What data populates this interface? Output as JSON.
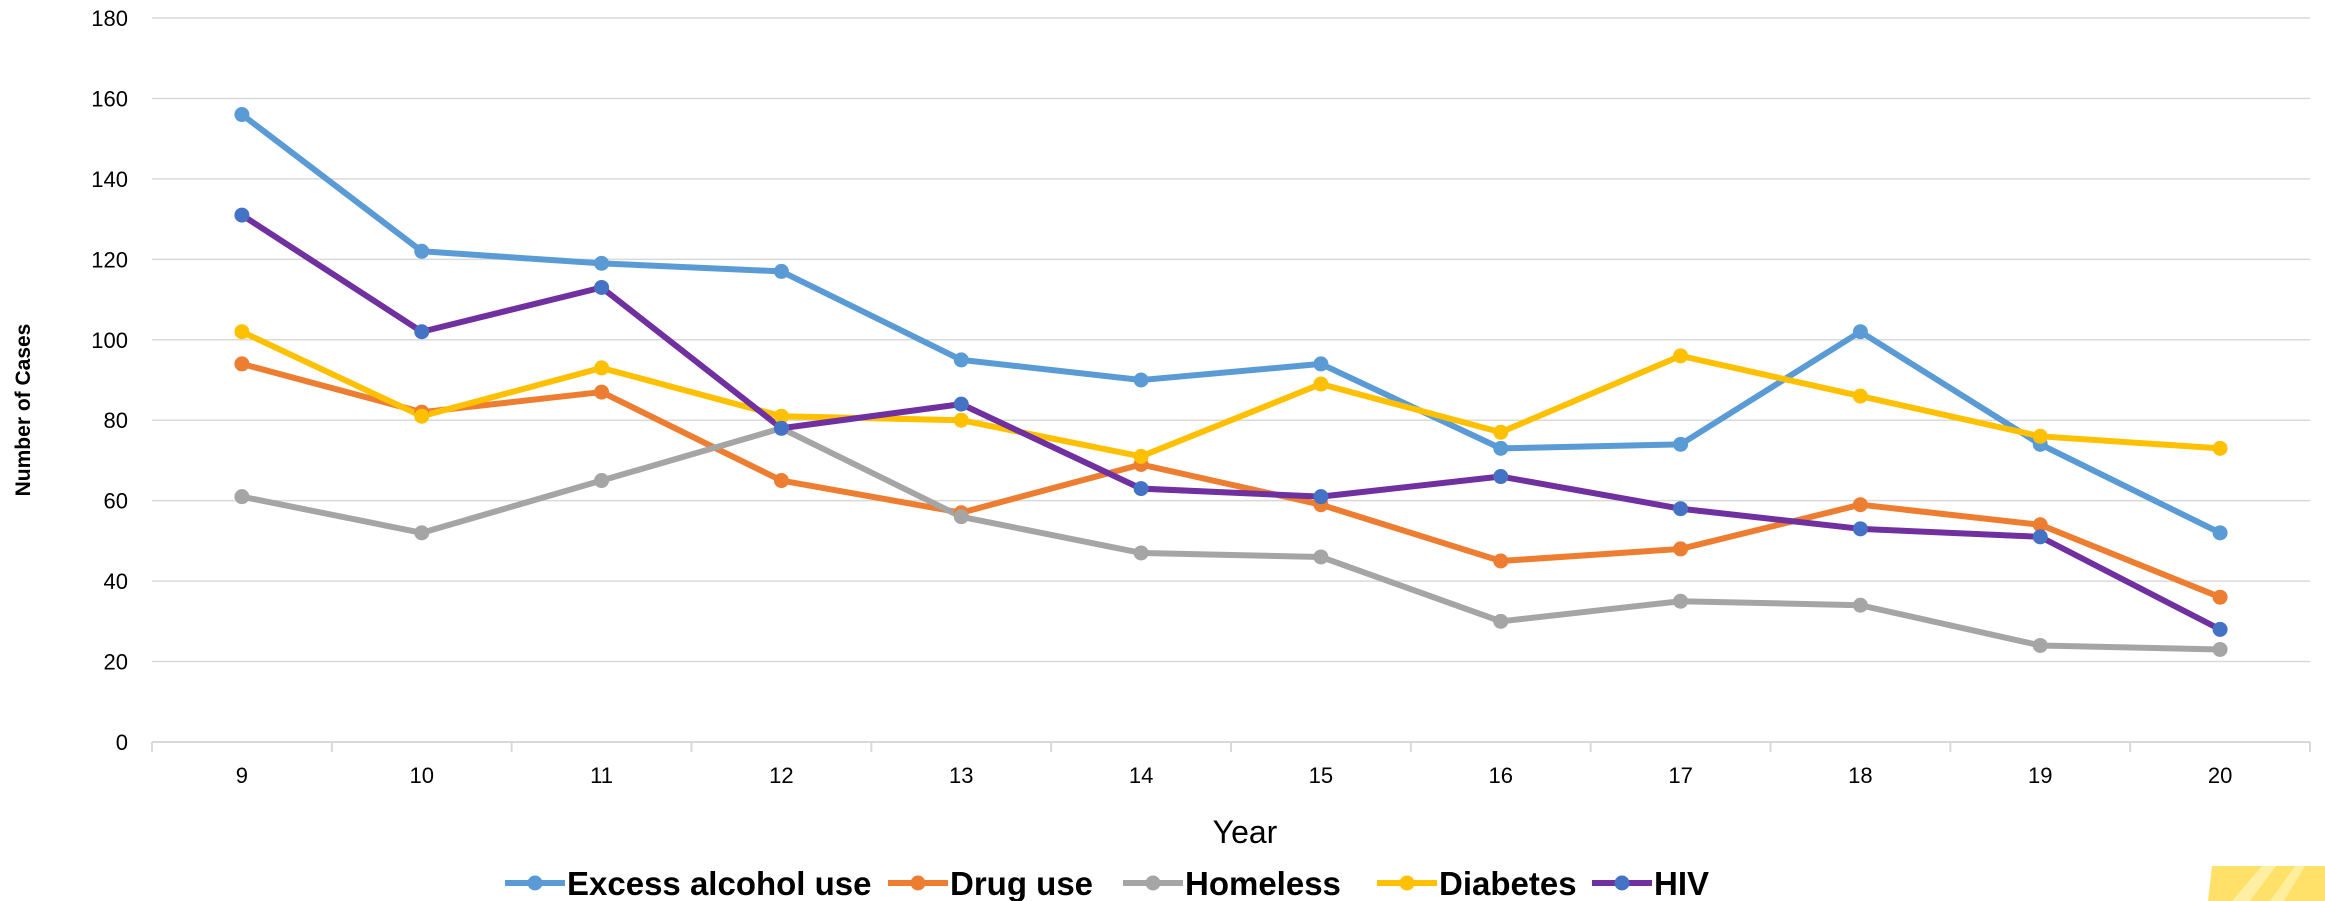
{
  "chart_data": {
    "type": "line",
    "title": "",
    "xlabel": "Year",
    "ylabel": "Number of Cases",
    "x": [
      9,
      10,
      11,
      12,
      13,
      14,
      15,
      16,
      17,
      18,
      19,
      20
    ],
    "ylim": [
      0,
      180
    ],
    "yticks": [
      0,
      20,
      40,
      60,
      80,
      100,
      120,
      140,
      160,
      180
    ],
    "grid": true,
    "legend_position": "bottom",
    "series": [
      {
        "name": "Excess alcohol use",
        "color": "#5B9BD5",
        "values": [
          156,
          122,
          119,
          117,
          95,
          90,
          94,
          73,
          74,
          102,
          74,
          52
        ]
      },
      {
        "name": "Drug use",
        "color": "#ED7D31",
        "values": [
          94,
          82,
          87,
          65,
          57,
          69,
          59,
          45,
          48,
          59,
          54,
          36
        ]
      },
      {
        "name": "Homeless",
        "color": "#A5A5A5",
        "values": [
          61,
          52,
          65,
          78,
          56,
          47,
          46,
          30,
          35,
          34,
          24,
          23
        ]
      },
      {
        "name": "Diabetes",
        "color": "#FFC000",
        "values": [
          102,
          81,
          93,
          81,
          80,
          71,
          89,
          77,
          96,
          86,
          76,
          73
        ]
      },
      {
        "name": "HIV",
        "color": "#7030A0",
        "marker_color": "#4472C4",
        "values": [
          131,
          102,
          113,
          78,
          84,
          63,
          61,
          66,
          58,
          53,
          51,
          28
        ]
      }
    ]
  }
}
